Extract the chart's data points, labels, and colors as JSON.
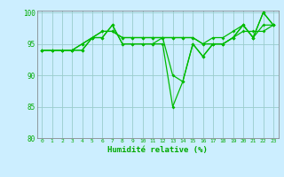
{
  "background_color": "#cceeff",
  "grid_color": "#99cccc",
  "line_color": "#00bb00",
  "xlabel": "Humidité relative (%)",
  "xlabel_color": "#00aa00",
  "tick_color": "#00aa00",
  "ylim": [
    80,
    100
  ],
  "xlim": [
    -0.5,
    23.5
  ],
  "yticks": [
    80,
    85,
    90,
    95,
    100
  ],
  "xtick_labels": [
    "0",
    "1",
    "2",
    "3",
    "4",
    "5",
    "6",
    "7",
    "8",
    "9",
    "10",
    "11",
    "12",
    "13",
    "14",
    "15",
    "16",
    "17",
    "18",
    "19",
    "20",
    "21",
    "22",
    "23"
  ],
  "series": [
    [
      94,
      94,
      94,
      94,
      94,
      96,
      96,
      98,
      95,
      95,
      95,
      95,
      96,
      90,
      89,
      95,
      93,
      95,
      95,
      96,
      98,
      96,
      100,
      98
    ],
    [
      94,
      94,
      94,
      94,
      94,
      96,
      96,
      98,
      95,
      95,
      95,
      95,
      95,
      85,
      89,
      95,
      93,
      95,
      95,
      96,
      98,
      96,
      100,
      98
    ],
    [
      94,
      94,
      94,
      94,
      95,
      96,
      97,
      97,
      96,
      96,
      96,
      96,
      96,
      96,
      96,
      96,
      95,
      95,
      95,
      96,
      97,
      97,
      97,
      98
    ],
    [
      94,
      94,
      94,
      94,
      95,
      96,
      97,
      97,
      96,
      96,
      96,
      96,
      96,
      96,
      96,
      96,
      95,
      96,
      96,
      97,
      98,
      96,
      98,
      98
    ]
  ]
}
